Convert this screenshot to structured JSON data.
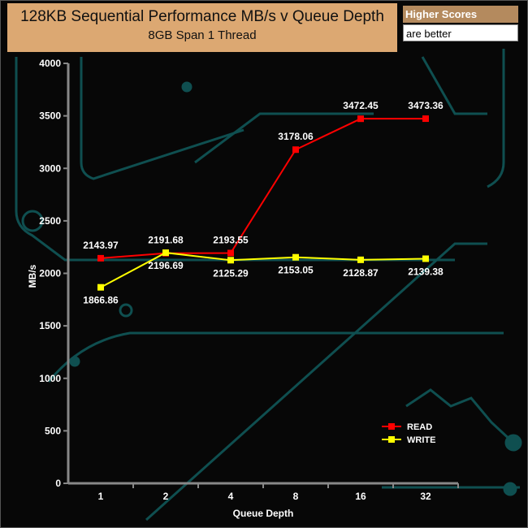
{
  "header": {
    "title": "128KB Sequential Performance MB/s v Queue Depth",
    "subtitle": "8GB Span 1 Thread"
  },
  "badge": {
    "line1": "Higher Scores",
    "line2": "are better"
  },
  "chart_data": {
    "type": "line",
    "title": "128KB Sequential Performance MB/s v Queue Depth",
    "subtitle": "8GB Span 1 Thread",
    "xlabel": "Queue Depth",
    "ylabel": "MB/s",
    "categories": [
      "1",
      "2",
      "4",
      "8",
      "16",
      "32"
    ],
    "ylim": [
      0,
      4000
    ],
    "yticks": [
      0,
      500,
      1000,
      1500,
      2000,
      2500,
      3000,
      3500,
      4000
    ],
    "grid": false,
    "legend_position": "bottom-right",
    "series": [
      {
        "name": "READ",
        "color": "#ff0000",
        "values": [
          2143.97,
          2191.68,
          2193.55,
          3178.06,
          3472.45,
          3473.36
        ]
      },
      {
        "name": "WRITE",
        "color": "#ffff00",
        "values": [
          1866.86,
          2196.69,
          2125.29,
          2153.05,
          2128.87,
          2139.38
        ]
      }
    ]
  }
}
